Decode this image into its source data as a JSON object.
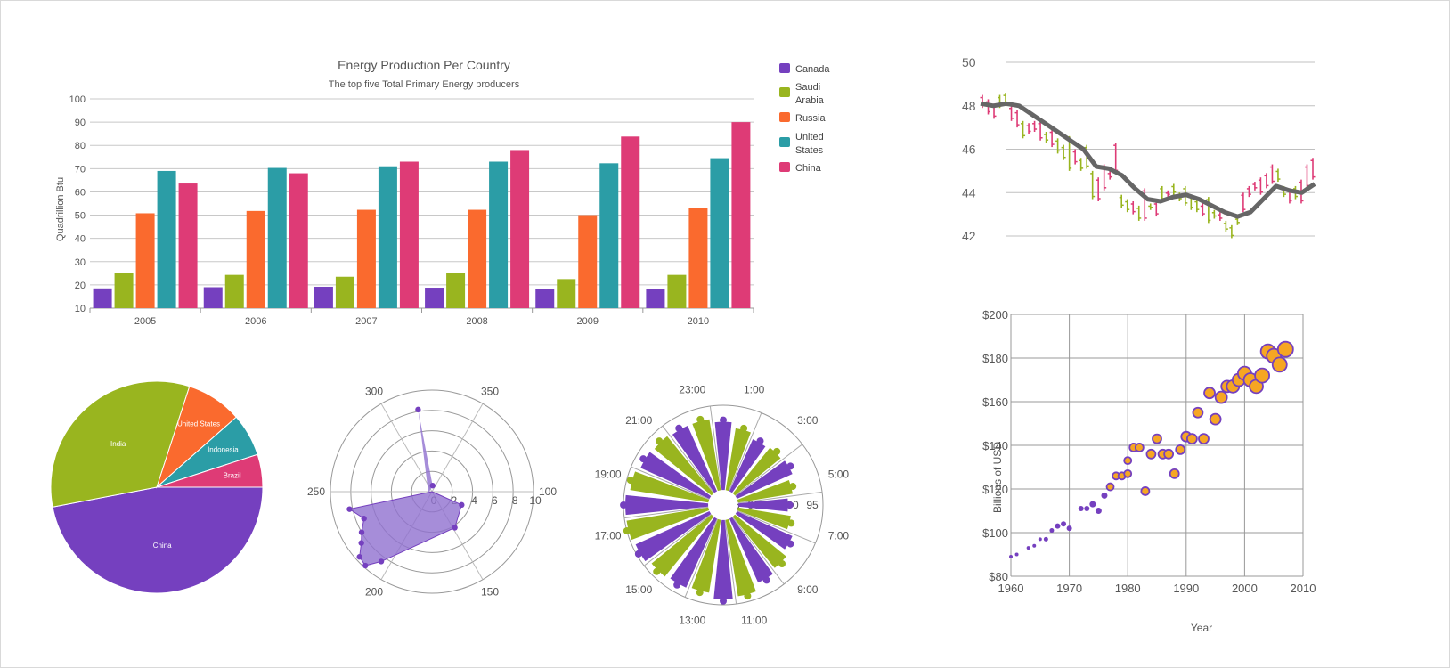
{
  "colors": {
    "canada": "#7540bf",
    "saudi": "#99b51f",
    "russia": "#fa6a2e",
    "us": "#2b9da6",
    "china": "#de3b76",
    "grid": "#c8c8c8",
    "trend": "#666666",
    "bubble_fill": "#f6a623",
    "bubble_stroke": "#7540bf"
  },
  "chart_data": [
    {
      "type": "bar",
      "title": "Energy Production Per Country",
      "subtitle": "The top five Total Primary Energy producers",
      "ylabel": "Quadrillion Btu",
      "xlabel": "",
      "ylim": [
        10,
        100
      ],
      "yticks": [
        "10",
        "20",
        "30",
        "40",
        "50",
        "60",
        "70",
        "80",
        "90",
        "100"
      ],
      "categories": [
        "2005",
        "2006",
        "2007",
        "2008",
        "2009",
        "2010"
      ],
      "legend": {
        "position": "right",
        "entries": [
          "Canada",
          "Saudi Arabia",
          "Russia",
          "United States",
          "China"
        ]
      },
      "grid": true,
      "series": [
        {
          "name": "Canada",
          "values": [
            18.5,
            19,
            19.2,
            18.8,
            18.2,
            18.2
          ]
        },
        {
          "name": "Saudi Arabia",
          "values": [
            25.2,
            24.3,
            23.5,
            25,
            22.5,
            24.3
          ]
        },
        {
          "name": "Russia",
          "values": [
            50.8,
            51.8,
            52.3,
            52.3,
            50,
            53
          ]
        },
        {
          "name": "United States",
          "values": [
            69,
            70.3,
            71,
            73,
            72.3,
            74.5
          ]
        },
        {
          "name": "China",
          "values": [
            63.6,
            68,
            73,
            78,
            83.8,
            90
          ]
        }
      ]
    },
    {
      "type": "line",
      "subtype": "ohlc-with-trend",
      "title": "",
      "xlabel": "",
      "ylabel": "",
      "ylim": [
        41.5,
        50.5
      ],
      "yticks": [
        "42",
        "44",
        "46",
        "48",
        "50"
      ],
      "grid": true,
      "ohlc": [
        [
          48.5,
          47.9,
          "down"
        ],
        [
          48.3,
          47.6,
          "down"
        ],
        [
          48.1,
          47.4,
          "down"
        ],
        [
          48.5,
          47.9,
          "up"
        ],
        [
          48.6,
          48.0,
          "up"
        ],
        [
          48.0,
          47.3,
          "down"
        ],
        [
          47.8,
          47.0,
          "down"
        ],
        [
          47.3,
          46.5,
          "up"
        ],
        [
          47.2,
          46.7,
          "down"
        ],
        [
          47.3,
          46.8,
          "down"
        ],
        [
          47.3,
          46.4,
          "down"
        ],
        [
          46.8,
          46.3,
          "up"
        ],
        [
          46.9,
          46.1,
          "down"
        ],
        [
          46.5,
          45.8,
          "up"
        ],
        [
          46.2,
          45.5,
          "up"
        ],
        [
          46.6,
          45.0,
          "up"
        ],
        [
          46.0,
          45.3,
          "down"
        ],
        [
          45.6,
          45.0,
          "up"
        ],
        [
          46.2,
          45.1,
          "up"
        ],
        [
          45.0,
          43.7,
          "up"
        ],
        [
          44.7,
          43.6,
          "down"
        ],
        [
          45.3,
          44.1,
          "down"
        ],
        [
          45.0,
          44.6,
          "down"
        ],
        [
          46.3,
          44.9,
          "down"
        ],
        [
          43.9,
          43.3,
          "up"
        ],
        [
          43.7,
          43.1,
          "up"
        ],
        [
          43.6,
          43.0,
          "down"
        ],
        [
          43.4,
          42.7,
          "up"
        ],
        [
          44.2,
          42.7,
          "down"
        ],
        [
          43.5,
          43.2,
          "up"
        ],
        [
          43.6,
          42.9,
          "down"
        ],
        [
          44.3,
          43.6,
          "up"
        ],
        [
          44.1,
          43.8,
          "down"
        ],
        [
          44.4,
          43.9,
          "up"
        ],
        [
          44.0,
          43.6,
          "up"
        ],
        [
          44.3,
          43.4,
          "up"
        ],
        [
          43.9,
          43.2,
          "up"
        ],
        [
          43.7,
          43.1,
          "up"
        ],
        [
          43.5,
          42.9,
          "down"
        ],
        [
          43.8,
          42.6,
          "up"
        ],
        [
          43.2,
          42.8,
          "up"
        ],
        [
          43.1,
          42.7,
          "down"
        ],
        [
          42.7,
          42.2,
          "up"
        ],
        [
          42.5,
          41.9,
          "up"
        ],
        [
          42.9,
          42.5,
          "up"
        ],
        [
          44.0,
          43.1,
          "down"
        ],
        [
          44.3,
          43.8,
          "down"
        ],
        [
          44.5,
          44.1,
          "down"
        ],
        [
          44.7,
          43.9,
          "down"
        ],
        [
          44.9,
          44.2,
          "down"
        ],
        [
          45.3,
          44.4,
          "down"
        ],
        [
          45.1,
          44.5,
          "up"
        ],
        [
          44.3,
          43.8,
          "up"
        ],
        [
          44.2,
          43.5,
          "down"
        ],
        [
          44.3,
          43.7,
          "up"
        ],
        [
          44.6,
          43.5,
          "down"
        ],
        [
          45.3,
          44.2,
          "down"
        ],
        [
          45.6,
          44.6,
          "down"
        ]
      ],
      "trend": [
        48.1,
        48.0,
        48.1,
        48.0,
        47.6,
        47.2,
        46.8,
        46.4,
        46.0,
        45.2,
        45.1,
        44.8,
        44.2,
        43.7,
        43.6,
        43.8,
        43.9,
        43.7,
        43.4,
        43.1,
        42.9,
        43.1,
        43.7,
        44.3,
        44.1,
        44.0,
        44.4
      ]
    },
    {
      "type": "pie",
      "title": "",
      "slices": [
        {
          "label": "China",
          "value": 47
        },
        {
          "label": "India",
          "value": 33
        },
        {
          "label": "United States",
          "value": 8.5
        },
        {
          "label": "Indonesia",
          "value": 6.5
        },
        {
          "label": "Brazil",
          "value": 5
        }
      ]
    },
    {
      "type": "scatter",
      "subtype": "polar-area",
      "title": "",
      "angle_ticks": [
        "100",
        "150",
        "200",
        "250",
        "300",
        "350"
      ],
      "radial_ticks": [
        "0",
        "2",
        "4",
        "6",
        "8",
        "10"
      ],
      "points": [
        {
          "angle": 317,
          "r": 8.2
        },
        {
          "angle": 330,
          "r": 0.6
        },
        {
          "angle": 120,
          "r": 3.2
        },
        {
          "angle": 148,
          "r": 4.2
        },
        {
          "angle": 205,
          "r": 8.5
        },
        {
          "angle": 210,
          "r": 9.8
        },
        {
          "angle": 215,
          "r": 9.6
        },
        {
          "angle": 220,
          "r": 8.6
        },
        {
          "angle": 225,
          "r": 8.0
        },
        {
          "angle": 232,
          "r": 7.2
        },
        {
          "angle": 240,
          "r": 8.3
        }
      ]
    },
    {
      "type": "bar",
      "subtype": "radial",
      "title": "",
      "angle_ticks": [
        "1:00",
        "3:00",
        "5:00",
        "7:00",
        "9:00",
        "11:00",
        "13:00",
        "15:00",
        "17:00",
        "19:00",
        "21:00",
        "23:00"
      ],
      "radial_ticks": [
        "75",
        "80",
        "85",
        "90",
        "95"
      ],
      "bars": [
        {
          "hour": 0,
          "value": 91.5
        },
        {
          "hour": 1,
          "value": 90
        },
        {
          "hour": 2,
          "value": 88.5
        },
        {
          "hour": 3,
          "value": 89
        },
        {
          "hour": 4,
          "value": 89.5
        },
        {
          "hour": 5,
          "value": 88
        },
        {
          "hour": 6,
          "value": 86.5
        },
        {
          "hour": 7,
          "value": 87.5
        },
        {
          "hour": 8,
          "value": 89.5
        },
        {
          "hour": 9,
          "value": 91
        },
        {
          "hour": 10,
          "value": 92
        },
        {
          "hour": 11,
          "value": 94
        },
        {
          "hour": 12,
          "value": 94.5
        },
        {
          "hour": 13,
          "value": 93
        },
        {
          "hour": 14,
          "value": 93.5
        },
        {
          "hour": 15,
          "value": 94
        },
        {
          "hour": 16,
          "value": 95
        },
        {
          "hour": 17,
          "value": 95.5
        },
        {
          "hour": 18,
          "value": 95.5
        },
        {
          "hour": 19,
          "value": 94.5
        },
        {
          "hour": 20,
          "value": 93.5
        },
        {
          "hour": 21,
          "value": 93
        },
        {
          "hour": 22,
          "value": 92.5
        },
        {
          "hour": 23,
          "value": 92.5
        }
      ]
    },
    {
      "type": "scatter",
      "subtype": "bubble",
      "title": "",
      "xlabel": "Year",
      "ylabel": "Billions of USD",
      "xlim": [
        1960,
        2010
      ],
      "ylim": [
        80,
        200
      ],
      "xticks": [
        "1960",
        "1970",
        "1980",
        "1990",
        "2000",
        "2010"
      ],
      "yticks": [
        "$80",
        "$100",
        "$120",
        "$140",
        "$160",
        "$180",
        "$200"
      ],
      "grid": true,
      "points": [
        [
          1960,
          89,
          2
        ],
        [
          1961,
          90,
          2
        ],
        [
          1963,
          93,
          2
        ],
        [
          1964,
          94,
          2
        ],
        [
          1965,
          97,
          2
        ],
        [
          1966,
          97,
          2.5
        ],
        [
          1967,
          101,
          2.5
        ],
        [
          1968,
          103,
          3
        ],
        [
          1969,
          104,
          3
        ],
        [
          1970,
          102,
          3
        ],
        [
          1972,
          111,
          3
        ],
        [
          1973,
          111,
          3
        ],
        [
          1974,
          113,
          3.5
        ],
        [
          1975,
          110,
          3.5
        ],
        [
          1976,
          117,
          3.5
        ],
        [
          1977,
          121,
          4
        ],
        [
          1978,
          126,
          4
        ],
        [
          1979,
          126,
          4
        ],
        [
          1980,
          127,
          4
        ],
        [
          1980,
          133,
          4
        ],
        [
          1981,
          139,
          4.5
        ],
        [
          1982,
          139,
          4.5
        ],
        [
          1983,
          119,
          4.5
        ],
        [
          1984,
          136,
          5
        ],
        [
          1985,
          143,
          5
        ],
        [
          1986,
          136,
          5
        ],
        [
          1987,
          136,
          5
        ],
        [
          1988,
          127,
          5
        ],
        [
          1989,
          138,
          5
        ],
        [
          1990,
          144,
          5.5
        ],
        [
          1991,
          143,
          5.5
        ],
        [
          1992,
          155,
          5.5
        ],
        [
          1993,
          143,
          5.5
        ],
        [
          1994,
          164,
          6
        ],
        [
          1995,
          152,
          6
        ],
        [
          1996,
          162,
          6.5
        ],
        [
          1997,
          167,
          6.5
        ],
        [
          1998,
          167,
          7
        ],
        [
          1999,
          170,
          7
        ],
        [
          2000,
          173,
          7.5
        ],
        [
          2001,
          170,
          7.5
        ],
        [
          2002,
          167,
          7.5
        ],
        [
          2003,
          172,
          8
        ],
        [
          2004,
          183,
          8
        ],
        [
          2005,
          181,
          8
        ],
        [
          2006,
          177,
          8
        ],
        [
          2007,
          184,
          8.5
        ]
      ]
    }
  ]
}
